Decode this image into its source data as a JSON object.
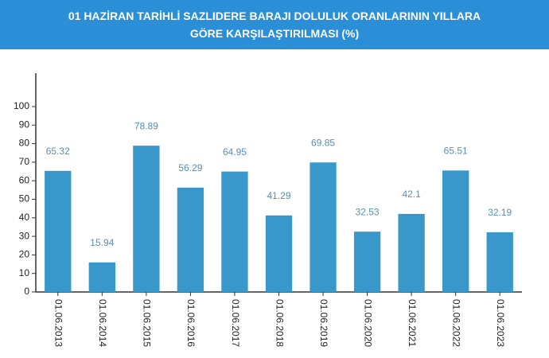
{
  "chart_data": {
    "type": "bar",
    "title": "01 HAZİRAN TARİHLİ SAZLIDERE BARAJI DOLULUK ORANLARININ YILLARA GÖRE KARŞILAŞTIRILMASI (%)",
    "categories": [
      "01.06.2013",
      "01.06.2014",
      "01.06.2015",
      "01.06.2016",
      "01.06.2017",
      "01.06.2018",
      "01.06.2019",
      "01.06.2020",
      "01.06.2021",
      "01.06.2022",
      "01.06.2023"
    ],
    "values": [
      65.32,
      15.94,
      78.89,
      56.29,
      64.95,
      41.29,
      69.85,
      32.53,
      42.1,
      65.51,
      32.19
    ],
    "color": "#3a97c9",
    "label_color": "#5b8fb3",
    "ylim": [
      0,
      118
    ],
    "yticks": [
      0,
      10,
      20,
      30,
      40,
      50,
      60,
      70,
      80,
      90,
      100
    ],
    "grid": false
  }
}
